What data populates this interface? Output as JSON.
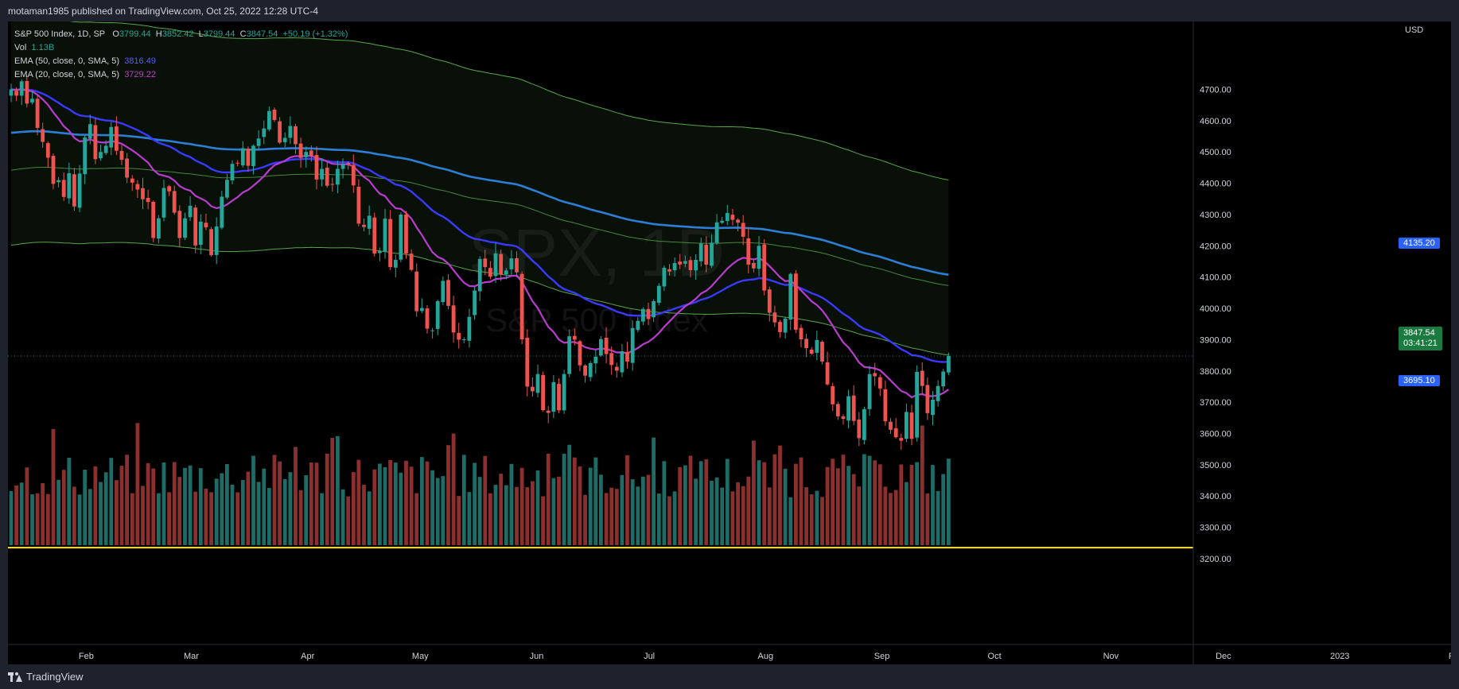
{
  "header": {
    "published": "motaman1985 published on TradingView.com, Oct 25, 2022 12:28 UTC-4"
  },
  "footer": {
    "logo_text": "TradingView"
  },
  "legend": {
    "symbol": "S&P 500 Index, 1D, SP",
    "o_label": "O",
    "o": "3799.44",
    "h_label": "H",
    "h": "3852.42",
    "l_label": "L",
    "l": "3799.44",
    "c_label": "C",
    "c": "3847.54",
    "change": "+50.19 (+1.32%)",
    "vol_label": "Vol",
    "vol": "1.13B",
    "ema50_label": "EMA (50, close, 0, SMA, 5)",
    "ema50": "3816.49",
    "ema20_label": "EMA (20, close, 0, SMA, 5)",
    "ema20": "3729.22"
  },
  "watermark": {
    "symbol": "SPX, 1D",
    "name": "S&P 500 Index"
  },
  "price_tags": {
    "last": "3847.54",
    "countdown": "03:41:21",
    "upper": "4135.20",
    "lower": "3695.10"
  },
  "colors": {
    "up": "#26a69a",
    "down": "#ef5350",
    "vol_up": "#1f6b66",
    "vol_down": "#8c2f2f",
    "ema50": "#3a3aff",
    "ema20": "#b93ccf",
    "ema200": "#2d7fd6",
    "band": "#57a64a",
    "hline": "#ffe23b",
    "tag_blue": "#2962ff",
    "tag_green": "#1b7a3f"
  },
  "chart_data": {
    "type": "candlestick",
    "currency": "USD",
    "y_ticks": [
      3200,
      3300,
      3400,
      3500,
      3600,
      3700,
      3800,
      3900,
      4000,
      4100,
      4200,
      4300,
      4400,
      4500,
      4600,
      4700
    ],
    "y_tick_labels": [
      "3200.00",
      "3300.00",
      "3400.00",
      "3500.00",
      "3600.00",
      "3700.00",
      "3800.00",
      "3900.00",
      "4000.00",
      "4100.00",
      "4200.00",
      "4300.00",
      "4400.00",
      "4500.00",
      "4600.00",
      "4700.00"
    ],
    "x_labels": [
      "Feb",
      "Mar",
      "Apr",
      "May",
      "Jun",
      "Jul",
      "Aug",
      "Sep",
      "Oct",
      "Nov",
      "Dec",
      "2023",
      "Feb"
    ],
    "x_label_dates": [
      "2022-02-01",
      "2022-03-01",
      "2022-04-01",
      "2022-05-01",
      "2022-06-01",
      "2022-07-01",
      "2022-08-01",
      "2022-09-01",
      "2022-10-01",
      "2022-11-01",
      "2022-12-01",
      "2023-01-01",
      "2023-02-01"
    ],
    "last_close": 3847.54,
    "hline": 3235,
    "closes": [
      4700,
      4680,
      4726,
      4655,
      4670,
      4577,
      4532,
      4482,
      4398,
      4410,
      4356,
      4432,
      4326,
      4431,
      4546,
      4589,
      4477,
      4500,
      4520,
      4580,
      4504,
      4475,
      4418,
      4402,
      4380,
      4349,
      4340,
      4225,
      4288,
      4385,
      4374,
      4306,
      4225,
      4288,
      4328,
      4201,
      4277,
      4259,
      4170,
      4262,
      4357,
      4411,
      4462,
      4463,
      4512,
      4456,
      4520,
      4543,
      4575,
      4631,
      4602,
      4530,
      4545,
      4583,
      4525,
      4481,
      4500,
      4488,
      4412,
      4446,
      4392,
      4397,
      4446,
      4462,
      4459,
      4393,
      4271,
      4260,
      4296,
      4175,
      4183,
      4287,
      4132,
      4155,
      4300,
      4175,
      4123,
      3991,
      4001,
      3935,
      3930,
      4023,
      4088,
      4008,
      3923,
      3900,
      3901,
      3973,
      4057,
      4158,
      4132,
      4101,
      4176,
      4108,
      4121,
      4160,
      4115,
      3901,
      3750,
      3735,
      3790,
      3675,
      3666,
      3764,
      3674,
      3790,
      3911,
      3900,
      3818,
      3785,
      3825,
      3845,
      3902,
      3854,
      3819,
      3801,
      3863,
      3830,
      3937,
      3960,
      3998,
      3966,
      4023,
      4072,
      4130,
      4118,
      4145,
      4140,
      4151,
      4122,
      4155,
      4207,
      4140,
      4210,
      4275,
      4280,
      4305,
      4283,
      4274,
      4229,
      4140,
      4128,
      4200,
      4057,
      3986,
      3955,
      3924,
      3967,
      4110,
      3932,
      3901,
      3873,
      3855,
      3899,
      3830,
      3757,
      3693,
      3655,
      3647,
      3719,
      3640,
      3585,
      3678,
      3790,
      3783,
      3744,
      3639,
      3612,
      3588,
      3577,
      3669,
      3583,
      3797,
      3752,
      3665,
      3708,
      3752,
      3798,
      3847.54
    ],
    "ema20_last": 3729.22,
    "ema50_last": 3816.49
  }
}
